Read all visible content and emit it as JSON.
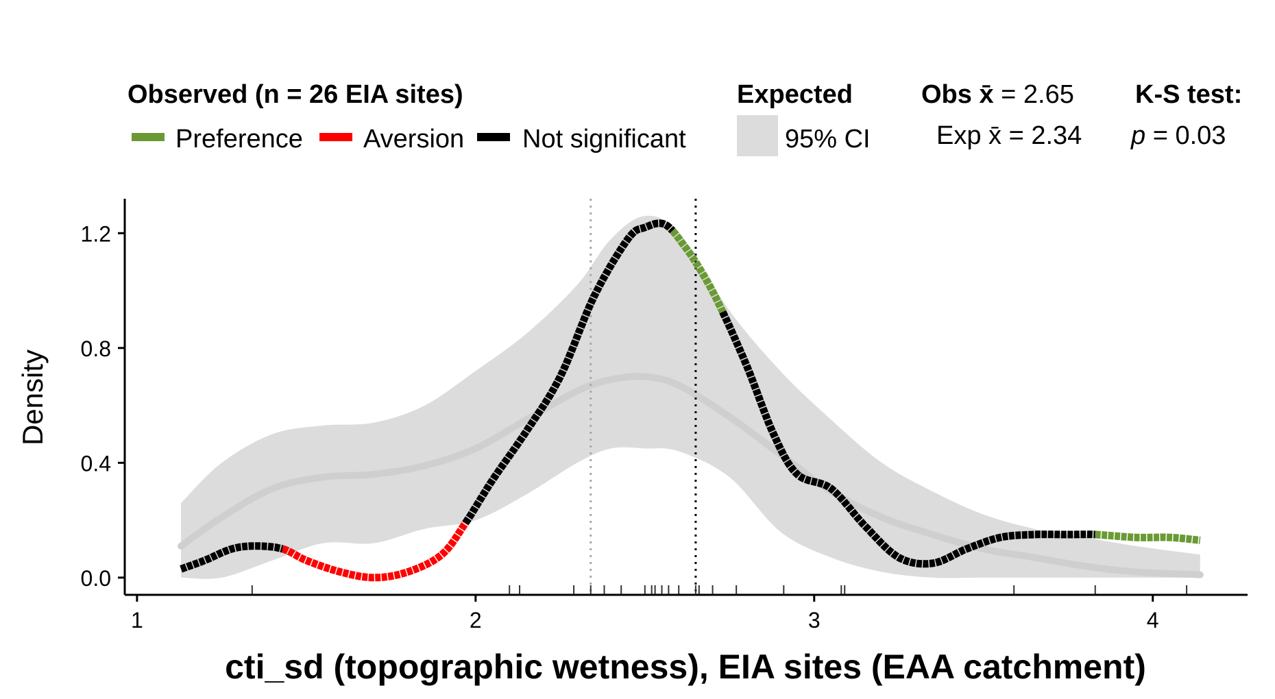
{
  "chart_data": {
    "type": "line",
    "title": "",
    "xlabel": "cti_sd (topographic wetness), EIA sites (EAA catchment)",
    "ylabel": "Density",
    "xlim": [
      0.98,
      4.28
    ],
    "ylim": [
      -0.06,
      1.32
    ],
    "x_ticks": [
      1,
      2,
      3,
      4
    ],
    "x_tick_labels": [
      "1",
      "2",
      "3",
      "4"
    ],
    "y_ticks": [
      0.0,
      0.4,
      0.8,
      1.2
    ],
    "y_tick_labels": [
      "0.0",
      "0.4",
      "0.8",
      "1.2"
    ],
    "colors": {
      "preference": "#6a9a34",
      "aversion": "#ff0000",
      "not_significant": "#000000",
      "expected_band": "#dcdcdc",
      "expected_line": "#cfcfcf",
      "obs_mean_line": "#000000",
      "exp_mean_line": "#a8a8a8"
    },
    "legend": {
      "observed_title": "Observed (n = 26 EIA sites)",
      "observed_entries": [
        {
          "label": "Preference",
          "key": "preference"
        },
        {
          "label": "Aversion",
          "key": "aversion"
        },
        {
          "label": "Not significant",
          "key": "not_significant"
        }
      ],
      "expected_title": "Expected",
      "expected_entry": "95% CI",
      "obs_mean_prefix": "Obs ",
      "obs_mean_text": " = 2.65",
      "exp_mean_prefix": "Exp ",
      "exp_mean_text": " = 2.34",
      "xbar_symbol": "x̄",
      "ks_title": "K-S test:",
      "ks_p_symbol": "p",
      "ks_p_text": " = 0.03"
    },
    "obs_mean": 2.65,
    "exp_mean": 2.34,
    "ks_p": 0.03,
    "n_sites": 26,
    "observed_density": {
      "x": [
        1.13,
        1.2,
        1.28,
        1.35,
        1.43,
        1.5,
        1.6,
        1.7,
        1.8,
        1.9,
        1.97,
        2.05,
        2.15,
        2.25,
        2.35,
        2.45,
        2.5,
        2.56,
        2.62,
        2.67,
        2.72,
        2.8,
        2.88,
        2.95,
        3.05,
        3.15,
        3.25,
        3.35,
        3.45,
        3.55,
        3.65,
        3.75,
        3.83,
        3.95,
        4.05,
        4.14
      ],
      "y": [
        0.03,
        0.06,
        0.1,
        0.11,
        0.1,
        0.06,
        0.02,
        0.0,
        0.02,
        0.08,
        0.19,
        0.34,
        0.51,
        0.7,
        0.98,
        1.18,
        1.22,
        1.23,
        1.15,
        1.06,
        0.95,
        0.74,
        0.5,
        0.36,
        0.31,
        0.18,
        0.07,
        0.05,
        0.1,
        0.14,
        0.15,
        0.15,
        0.15,
        0.14,
        0.14,
        0.13
      ]
    },
    "observed_segments": [
      {
        "class": "not_significant",
        "x_range": [
          1.13,
          1.43
        ]
      },
      {
        "class": "aversion",
        "x_range": [
          1.43,
          1.97
        ]
      },
      {
        "class": "not_significant",
        "x_range": [
          1.97,
          2.58
        ]
      },
      {
        "class": "preference",
        "x_range": [
          2.58,
          2.73
        ]
      },
      {
        "class": "not_significant",
        "x_range": [
          2.73,
          3.83
        ]
      },
      {
        "class": "preference",
        "x_range": [
          3.83,
          4.14
        ]
      }
    ],
    "expected_mean_density": {
      "x": [
        1.13,
        1.25,
        1.4,
        1.55,
        1.7,
        1.85,
        2.0,
        2.15,
        2.3,
        2.4,
        2.5,
        2.6,
        2.75,
        2.9,
        3.05,
        3.2,
        3.35,
        3.5,
        3.65,
        3.8,
        3.95,
        4.14
      ],
      "y": [
        0.11,
        0.21,
        0.31,
        0.35,
        0.36,
        0.39,
        0.45,
        0.55,
        0.65,
        0.69,
        0.7,
        0.67,
        0.56,
        0.43,
        0.3,
        0.21,
        0.15,
        0.1,
        0.07,
        0.04,
        0.02,
        0.01
      ]
    },
    "expected_ci_upper": {
      "x": [
        1.13,
        1.25,
        1.4,
        1.55,
        1.7,
        1.85,
        2.0,
        2.15,
        2.3,
        2.4,
        2.5,
        2.6,
        2.75,
        2.9,
        3.05,
        3.2,
        3.35,
        3.5,
        3.65,
        3.8,
        3.95,
        4.14
      ],
      "y": [
        0.26,
        0.4,
        0.5,
        0.53,
        0.54,
        0.6,
        0.72,
        0.85,
        1.02,
        1.18,
        1.26,
        1.2,
        0.93,
        0.72,
        0.55,
        0.4,
        0.3,
        0.22,
        0.17,
        0.14,
        0.11,
        0.08
      ]
    },
    "expected_ci_lower": {
      "x": [
        1.13,
        1.25,
        1.4,
        1.55,
        1.7,
        1.85,
        2.0,
        2.15,
        2.3,
        2.4,
        2.5,
        2.6,
        2.75,
        2.9,
        3.05,
        3.2,
        3.35,
        3.5,
        3.65,
        3.8,
        3.95,
        4.14
      ],
      "y": [
        0.0,
        0.0,
        0.06,
        0.12,
        0.12,
        0.17,
        0.2,
        0.29,
        0.4,
        0.45,
        0.45,
        0.44,
        0.35,
        0.16,
        0.07,
        0.02,
        0.0,
        0.0,
        0.0,
        0.0,
        0.0,
        0.0
      ]
    },
    "rug_x": [
      1.34,
      2.1,
      2.13,
      2.29,
      2.34,
      2.38,
      2.43,
      2.5,
      2.52,
      2.53,
      2.55,
      2.57,
      2.6,
      2.65,
      2.66,
      2.7,
      2.77,
      2.91,
      3.08,
      3.09,
      3.59,
      3.83,
      4.1
    ]
  }
}
